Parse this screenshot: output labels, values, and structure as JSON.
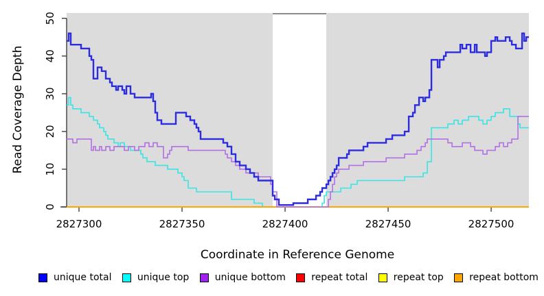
{
  "chart_data": {
    "type": "line",
    "subtype": "step-after",
    "title": "",
    "xlabel": "Coordinate in Reference Genome",
    "ylabel": "Read Coverage Depth",
    "xlim": [
      2827294,
      2827518.3
    ],
    "ylim": [
      0,
      51.4
    ],
    "x_ticks": [
      2827300,
      2827350,
      2827400,
      2827450,
      2827500
    ],
    "y_ticks": [
      0,
      10,
      20,
      30,
      40,
      50
    ],
    "grid": false,
    "legend_position": "bottom",
    "plot_background": "#dcdcdc",
    "axis_color": "#404040",
    "highlight_region": {
      "x_start": 2827394,
      "x_end": 2827420,
      "color": "#ffffff",
      "border_top_color": "#8c8c8c"
    },
    "series": [
      {
        "name": "repeat total",
        "color": "#ff0000",
        "line_width": 1.5,
        "points": [
          [
            2827294,
            0
          ],
          [
            2827518,
            0
          ]
        ]
      },
      {
        "name": "repeat top",
        "color": "#ffff00",
        "line_width": 1.5,
        "points": [
          [
            2827294,
            0
          ],
          [
            2827518,
            0
          ]
        ]
      },
      {
        "name": "unique top",
        "color": "#3ae4e4",
        "line_width": 1.6,
        "points": [
          [
            2827294,
            27
          ],
          [
            2827295,
            29
          ],
          [
            2827296,
            27
          ],
          [
            2827297,
            26
          ],
          [
            2827301,
            25
          ],
          [
            2827305,
            24
          ],
          [
            2827307,
            23
          ],
          [
            2827309,
            22
          ],
          [
            2827310,
            21
          ],
          [
            2827312,
            20
          ],
          [
            2827313,
            19
          ],
          [
            2827314,
            18
          ],
          [
            2827317,
            17
          ],
          [
            2827319,
            16
          ],
          [
            2827320,
            17
          ],
          [
            2827322,
            16
          ],
          [
            2827325,
            15
          ],
          [
            2827330,
            14
          ],
          [
            2827331,
            13
          ],
          [
            2827333,
            12
          ],
          [
            2827337,
            11
          ],
          [
            2827343,
            10
          ],
          [
            2827348,
            9
          ],
          [
            2827350,
            8
          ],
          [
            2827351,
            7
          ],
          [
            2827353,
            5
          ],
          [
            2827357,
            4
          ],
          [
            2827374,
            2
          ],
          [
            2827385,
            1
          ],
          [
            2827389,
            0
          ],
          [
            2827417,
            0
          ],
          [
            2827418,
            1
          ],
          [
            2827419,
            3
          ],
          [
            2827420,
            4
          ],
          [
            2827427,
            5
          ],
          [
            2827432,
            6
          ],
          [
            2827435,
            7
          ],
          [
            2827456,
            7
          ],
          [
            2827458,
            8
          ],
          [
            2827465,
            8
          ],
          [
            2827467,
            9
          ],
          [
            2827469,
            12
          ],
          [
            2827471,
            21
          ],
          [
            2827479,
            22
          ],
          [
            2827482,
            23
          ],
          [
            2827484,
            22
          ],
          [
            2827486,
            23
          ],
          [
            2827489,
            24
          ],
          [
            2827494,
            23
          ],
          [
            2827496,
            22
          ],
          [
            2827498,
            23
          ],
          [
            2827500,
            24
          ],
          [
            2827502,
            25
          ],
          [
            2827504,
            25
          ],
          [
            2827506,
            26
          ],
          [
            2827509,
            24
          ],
          [
            2827513,
            22
          ],
          [
            2827514,
            21
          ]
        ]
      },
      {
        "name": "repeat bottom",
        "color": "#ffa500",
        "line_width": 2,
        "points": [
          [
            2827294,
            0
          ],
          [
            2827518,
            0
          ]
        ]
      },
      {
        "name": "unique bottom",
        "color": "#b26fe2",
        "line_width": 1.6,
        "points": [
          [
            2827294,
            18
          ],
          [
            2827297,
            17
          ],
          [
            2827299,
            18
          ],
          [
            2827306,
            15
          ],
          [
            2827307,
            16
          ],
          [
            2827308,
            15
          ],
          [
            2827310,
            16
          ],
          [
            2827311,
            15
          ],
          [
            2827313,
            16
          ],
          [
            2827315,
            15
          ],
          [
            2827317,
            16
          ],
          [
            2827322,
            15
          ],
          [
            2827324,
            16
          ],
          [
            2827327,
            15
          ],
          [
            2827329,
            16
          ],
          [
            2827332,
            17
          ],
          [
            2827334,
            16
          ],
          [
            2827336,
            17
          ],
          [
            2827338,
            16
          ],
          [
            2827341,
            13
          ],
          [
            2827343,
            14
          ],
          [
            2827344,
            15
          ],
          [
            2827345,
            16
          ],
          [
            2827353,
            15
          ],
          [
            2827371,
            14
          ],
          [
            2827372,
            13
          ],
          [
            2827374,
            12
          ],
          [
            2827376,
            11
          ],
          [
            2827378,
            10
          ],
          [
            2827381,
            9
          ],
          [
            2827387,
            8
          ],
          [
            2827393,
            6
          ],
          [
            2827394,
            4
          ],
          [
            2827396,
            0
          ],
          [
            2827420,
            0
          ],
          [
            2827421,
            2
          ],
          [
            2827422,
            4
          ],
          [
            2827423,
            6
          ],
          [
            2827424,
            8
          ],
          [
            2827425,
            9
          ],
          [
            2827426,
            10
          ],
          [
            2827431,
            11
          ],
          [
            2827438,
            12
          ],
          [
            2827449,
            13
          ],
          [
            2827458,
            14
          ],
          [
            2827464,
            15
          ],
          [
            2827466,
            16
          ],
          [
            2827468,
            17
          ],
          [
            2827469,
            18
          ],
          [
            2827479,
            17
          ],
          [
            2827481,
            16
          ],
          [
            2827486,
            17
          ],
          [
            2827490,
            16
          ],
          [
            2827492,
            15
          ],
          [
            2827496,
            14
          ],
          [
            2827498,
            15
          ],
          [
            2827502,
            16
          ],
          [
            2827504,
            17
          ],
          [
            2827506,
            16
          ],
          [
            2827508,
            17
          ],
          [
            2827510,
            18
          ],
          [
            2827513,
            24
          ]
        ]
      },
      {
        "name": "unique total",
        "color": "#2b2bdf",
        "line_width": 2.4,
        "points": [
          [
            2827294,
            44
          ],
          [
            2827295,
            46
          ],
          [
            2827296,
            43
          ],
          [
            2827300,
            43
          ],
          [
            2827301,
            42
          ],
          [
            2827305,
            40
          ],
          [
            2827306,
            39
          ],
          [
            2827307,
            34
          ],
          [
            2827309,
            37
          ],
          [
            2827311,
            36
          ],
          [
            2827313,
            34
          ],
          [
            2827315,
            33
          ],
          [
            2827316,
            32
          ],
          [
            2827318,
            31
          ],
          [
            2827319,
            32
          ],
          [
            2827321,
            31
          ],
          [
            2827322,
            30
          ],
          [
            2827323,
            32
          ],
          [
            2827325,
            30
          ],
          [
            2827327,
            29
          ],
          [
            2827335,
            30
          ],
          [
            2827336,
            28
          ],
          [
            2827337,
            25
          ],
          [
            2827338,
            23
          ],
          [
            2827340,
            22
          ],
          [
            2827347,
            25
          ],
          [
            2827352,
            24
          ],
          [
            2827354,
            23
          ],
          [
            2827356,
            22
          ],
          [
            2827357,
            21
          ],
          [
            2827358,
            20
          ],
          [
            2827359,
            18
          ],
          [
            2827370,
            17
          ],
          [
            2827372,
            16
          ],
          [
            2827374,
            14
          ],
          [
            2827376,
            12
          ],
          [
            2827378,
            11
          ],
          [
            2827381,
            10
          ],
          [
            2827383,
            9
          ],
          [
            2827385,
            8
          ],
          [
            2827387,
            7
          ],
          [
            2827394,
            3
          ],
          [
            2827395,
            2
          ],
          [
            2827397,
            0.5
          ],
          [
            2827404,
            1
          ],
          [
            2827411,
            2
          ],
          [
            2827415,
            3
          ],
          [
            2827417,
            4
          ],
          [
            2827418,
            5
          ],
          [
            2827420,
            6
          ],
          [
            2827421,
            7
          ],
          [
            2827422,
            8
          ],
          [
            2827423,
            9
          ],
          [
            2827424,
            10
          ],
          [
            2827425,
            11
          ],
          [
            2827426,
            13
          ],
          [
            2827430,
            14
          ],
          [
            2827431,
            15
          ],
          [
            2827438,
            16
          ],
          [
            2827440,
            17
          ],
          [
            2827449,
            18
          ],
          [
            2827452,
            19
          ],
          [
            2827458,
            20
          ],
          [
            2827460,
            24
          ],
          [
            2827462,
            25
          ],
          [
            2827463,
            27
          ],
          [
            2827465,
            29
          ],
          [
            2827467,
            28
          ],
          [
            2827468,
            29
          ],
          [
            2827470,
            31
          ],
          [
            2827471,
            39
          ],
          [
            2827474,
            37
          ],
          [
            2827475,
            39
          ],
          [
            2827477,
            40
          ],
          [
            2827478,
            41
          ],
          [
            2827485,
            43
          ],
          [
            2827486,
            42
          ],
          [
            2827488,
            43
          ],
          [
            2827490,
            41
          ],
          [
            2827492,
            43
          ],
          [
            2827493,
            41
          ],
          [
            2827497,
            40
          ],
          [
            2827498,
            41
          ],
          [
            2827500,
            44
          ],
          [
            2827502,
            45
          ],
          [
            2827503,
            44
          ],
          [
            2827507,
            45
          ],
          [
            2827509,
            44
          ],
          [
            2827510,
            43
          ],
          [
            2827512,
            42
          ],
          [
            2827515,
            46
          ],
          [
            2827516,
            44
          ],
          [
            2827517,
            45
          ]
        ]
      }
    ]
  },
  "legend": {
    "items": [
      {
        "label": "unique total",
        "color": "#0000ff"
      },
      {
        "label": "unique top",
        "color": "#00ffff"
      },
      {
        "label": "unique bottom",
        "color": "#a020f0"
      },
      {
        "label": "repeat total",
        "color": "#ff0000"
      },
      {
        "label": "repeat top",
        "color": "#ffff00"
      },
      {
        "label": "repeat bottom",
        "color": "#ffa500"
      }
    ]
  }
}
